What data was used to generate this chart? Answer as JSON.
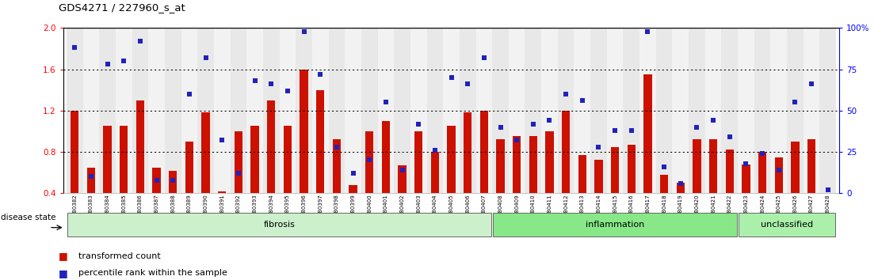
{
  "title": "GDS4271 / 227960_s_at",
  "samples": [
    "GSM380382",
    "GSM380383",
    "GSM380384",
    "GSM380385",
    "GSM380386",
    "GSM380387",
    "GSM380388",
    "GSM380389",
    "GSM380390",
    "GSM380391",
    "GSM380392",
    "GSM380393",
    "GSM380394",
    "GSM380395",
    "GSM380396",
    "GSM380397",
    "GSM380398",
    "GSM380399",
    "GSM380400",
    "GSM380401",
    "GSM380402",
    "GSM380403",
    "GSM380404",
    "GSM380405",
    "GSM380406",
    "GSM380407",
    "GSM380408",
    "GSM380409",
    "GSM380410",
    "GSM380411",
    "GSM380412",
    "GSM380413",
    "GSM380414",
    "GSM380415",
    "GSM380416",
    "GSM380417",
    "GSM380418",
    "GSM380419",
    "GSM380420",
    "GSM380421",
    "GSM380422",
    "GSM380423",
    "GSM380424",
    "GSM380425",
    "GSM380426",
    "GSM380427",
    "GSM380428"
  ],
  "red_bars": [
    1.2,
    0.65,
    1.05,
    1.05,
    1.3,
    0.65,
    0.62,
    0.9,
    1.18,
    0.42,
    1.0,
    1.05,
    1.3,
    1.05,
    1.6,
    1.4,
    0.92,
    0.48,
    1.0,
    1.1,
    0.67,
    1.0,
    0.8,
    1.05,
    1.18,
    1.2,
    0.92,
    0.95,
    0.95,
    1.0,
    1.2,
    0.77,
    0.72,
    0.85,
    0.87,
    1.55,
    0.58,
    0.5,
    0.92,
    0.92,
    0.82,
    0.68,
    0.8,
    0.75,
    0.9,
    0.92,
    0.4
  ],
  "blue_pct": [
    88,
    10,
    78,
    80,
    92,
    8,
    8,
    60,
    82,
    32,
    12,
    68,
    66,
    62,
    98,
    72,
    28,
    12,
    20,
    55,
    14,
    42,
    26,
    70,
    66,
    82,
    40,
    32,
    42,
    44,
    60,
    56,
    28,
    38,
    38,
    98,
    16,
    6,
    40,
    44,
    34,
    18,
    24,
    14,
    55,
    66,
    2
  ],
  "groups": [
    {
      "label": "fibrosis",
      "start": 0,
      "end": 26,
      "color": "#ccf0cc"
    },
    {
      "label": "inflammation",
      "start": 26,
      "end": 41,
      "color": "#88e888"
    },
    {
      "label": "unclassified",
      "start": 41,
      "end": 47,
      "color": "#aaf0aa"
    }
  ],
  "ymin": 0.4,
  "ymax": 2.0,
  "yticks_left": [
    0.4,
    0.8,
    1.2,
    1.6,
    2.0
  ],
  "yticks_right": [
    0,
    25,
    50,
    75,
    100
  ],
  "ytick_right_labels": [
    "0",
    "25",
    "50",
    "75",
    "100%"
  ],
  "hlines": [
    0.8,
    1.2,
    1.6
  ],
  "bar_color": "#cc1100",
  "square_color": "#2222bb",
  "col_colors": [
    "#e8e8e8",
    "#f2f2f2"
  ],
  "disease_state_label": "disease state",
  "legend_bar_label": "transformed count",
  "legend_sq_label": "percentile rank within the sample"
}
